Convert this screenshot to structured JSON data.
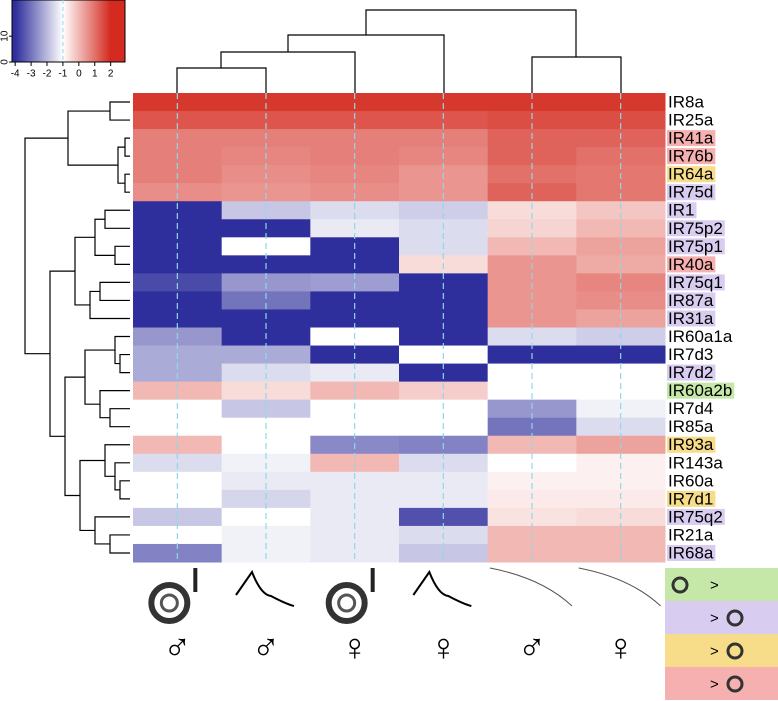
{
  "chart_data": {
    "type": "heatmap",
    "rows": [
      "IR8a",
      "IR25a",
      "IR41a",
      "IR76b",
      "IR64a",
      "IR75d",
      "IR1",
      "IR75p2",
      "IR75p1",
      "IR40a",
      "IR75q1",
      "IR87a",
      "IR31a",
      "IR60a1a",
      "IR7d3",
      "IR7d2",
      "IR60a2b",
      "IR7d4",
      "IR85a",
      "IR93a",
      "IR143a",
      "IR60a",
      "IR7d1",
      "IR75q2",
      "IR21a",
      "IR68a"
    ],
    "row_label_colors": [
      null,
      null,
      "#f7b0b0",
      "#f7b0b0",
      "#f7dd8a",
      "#d8cdf0",
      "#d8cdf0",
      "#d8cdf0",
      "#d8cdf0",
      "#f7b0b0",
      "#d8cdf0",
      "#d8cdf0",
      "#d8cdf0",
      null,
      null,
      "#d8cdf0",
      "#c5e8a8",
      null,
      null,
      "#f7dd8a",
      null,
      null,
      "#f7dd8a",
      "#d8cdf0",
      null,
      "#d8cdf0"
    ],
    "columns": [
      "♂",
      "♂",
      "♀",
      "♀",
      "♂",
      "♀"
    ],
    "values": [
      [
        1.8,
        1.8,
        1.8,
        1.8,
        1.8,
        1.8
      ],
      [
        1.4,
        1.4,
        1.4,
        1.4,
        1.5,
        1.5
      ],
      [
        0.8,
        0.8,
        0.8,
        0.8,
        1.2,
        1.2
      ],
      [
        0.8,
        0.7,
        0.8,
        0.7,
        1.2,
        1.0
      ],
      [
        0.8,
        0.6,
        0.7,
        0.5,
        1.0,
        0.9
      ],
      [
        0.6,
        0.5,
        0.6,
        0.5,
        1.2,
        0.9
      ],
      [
        -4,
        -1.8,
        -1.5,
        -1.7,
        -0.5,
        -0.2
      ],
      [
        -4,
        -4,
        -1.3,
        -1.5,
        -0.4,
        0
      ],
      [
        -4,
        -1,
        -4,
        -1.5,
        0,
        0.3
      ],
      [
        -4,
        -4,
        -4,
        -0.5,
        0.5,
        0.2
      ],
      [
        -3.6,
        -2.5,
        -2.4,
        -4,
        0.5,
        0.7
      ],
      [
        -4,
        -3,
        -4,
        -4,
        0.5,
        0.6
      ],
      [
        -4,
        -4,
        -4,
        -4,
        0.5,
        0.3
      ],
      [
        -2.5,
        -4,
        -1,
        -4,
        -1.5,
        -1.7
      ],
      [
        -2.2,
        -2.2,
        -4,
        -1,
        -4,
        -4
      ],
      [
        -2.2,
        -1.5,
        -1.3,
        -4,
        -1,
        -1
      ],
      [
        0,
        -0.5,
        0,
        -0.3,
        -1,
        -1
      ],
      [
        -1,
        -1.8,
        -1,
        -1,
        -2.5,
        -1.2
      ],
      [
        -1,
        -1,
        -1,
        -1,
        -3,
        -1.5
      ],
      [
        0,
        -1,
        -2.7,
        -2.8,
        0,
        0.3
      ],
      [
        -1.5,
        -1.2,
        0,
        -1.5,
        -1,
        -0.8
      ],
      [
        -1,
        -1.3,
        -1.3,
        -1.3,
        -0.8,
        -0.8
      ],
      [
        -1,
        -1.6,
        -1.3,
        -1.3,
        -0.7,
        -0.7
      ],
      [
        -1.8,
        -1,
        -1.3,
        -3.5,
        -0.6,
        -0.5
      ],
      [
        -1,
        -1.2,
        -1.3,
        -1.5,
        0,
        0
      ],
      [
        -2.8,
        -1.2,
        -1.3,
        -1.8,
        0,
        0
      ]
    ],
    "colorscale": {
      "stops": [
        -4,
        -1,
        2
      ],
      "colors": [
        "#2e2e9c",
        "#ffffff",
        "#d42a1f"
      ]
    },
    "colorbar": {
      "xlim": [
        -4.2,
        2.9
      ],
      "xticks": [
        -4,
        -3,
        -2,
        -1,
        0,
        1,
        2
      ],
      "ylim": [
        0,
        24
      ],
      "yticks": [
        0,
        10
      ]
    },
    "legend": [
      {
        "color": "#c5e8a8",
        "label": ">"
      },
      {
        "color": "#d8cdf0",
        "label": ">"
      },
      {
        "color": "#f7dd8a",
        "label": ">"
      },
      {
        "color": "#f7b0b0",
        "label": ">"
      }
    ]
  }
}
